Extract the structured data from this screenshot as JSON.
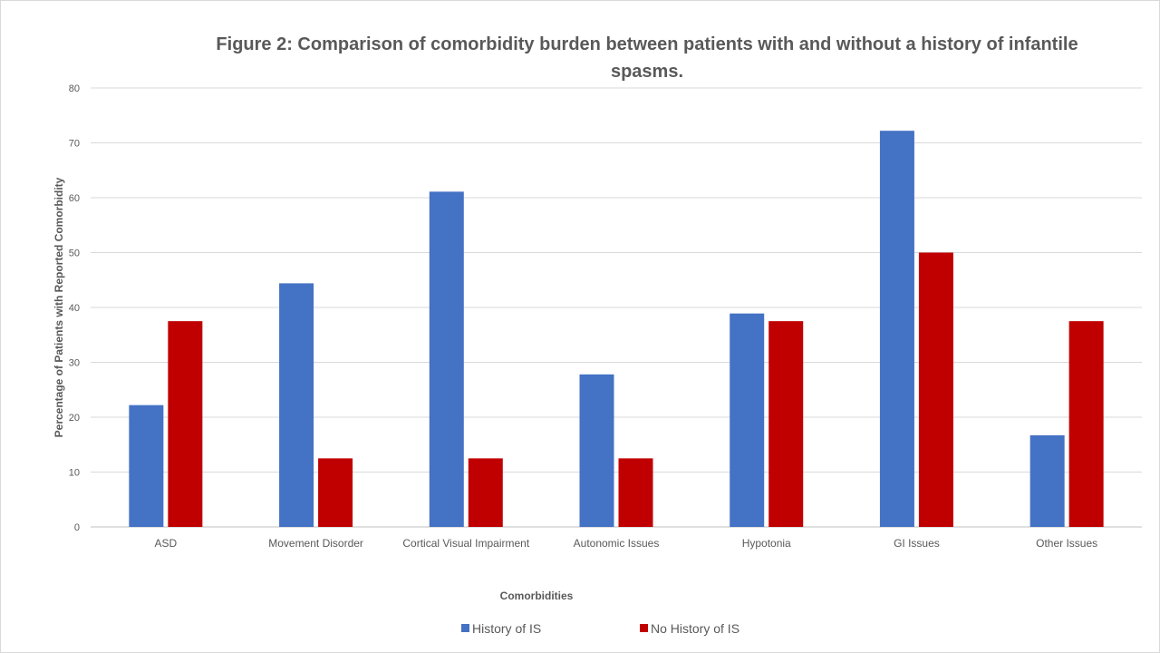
{
  "chart_data": {
    "type": "bar",
    "title_lines": [
      "Figure 2: Comparison of comorbidity burden between patients with and without a history of infantile",
      "spasms."
    ],
    "xlabel": "Comorbidities",
    "ylabel": "Percentage of Patients with Reported Comorbidity",
    "ylim": [
      0,
      80
    ],
    "yticks": [
      0,
      10,
      20,
      30,
      40,
      50,
      60,
      70,
      80
    ],
    "grid": true,
    "legend_position": "bottom",
    "categories": [
      "ASD",
      "Movement Disorder",
      "Cortical Visual Impairment",
      "Autonomic Issues",
      "Hypotonia",
      "GI Issues",
      "Other Issues"
    ],
    "series": [
      {
        "name": "History of IS",
        "color": "#4472c4",
        "values": [
          22.2,
          44.4,
          61.1,
          27.8,
          38.9,
          72.2,
          16.7
        ]
      },
      {
        "name": "No History of IS",
        "color": "#c00000",
        "values": [
          37.5,
          12.5,
          12.5,
          12.5,
          37.5,
          50.0,
          37.5
        ]
      }
    ]
  }
}
